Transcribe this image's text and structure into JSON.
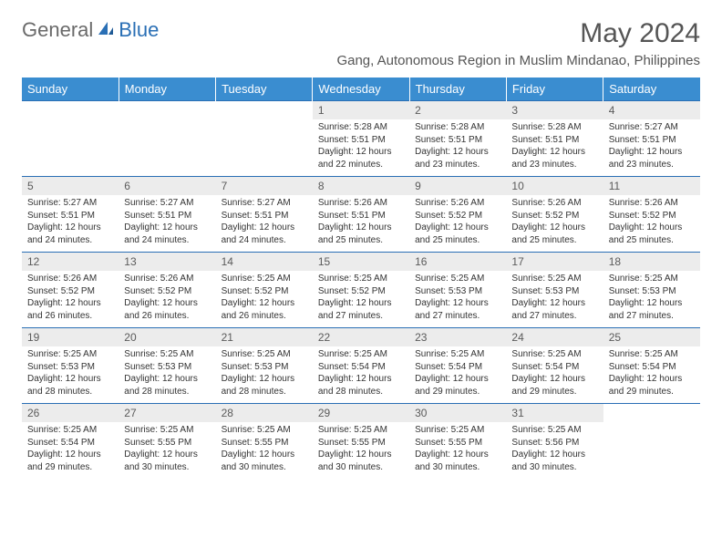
{
  "logo": {
    "part1": "General",
    "part2": "Blue"
  },
  "title": "May 2024",
  "location": "Gang, Autonomous Region in Muslim Mindanao, Philippines",
  "weekdays": [
    "Sunday",
    "Monday",
    "Tuesday",
    "Wednesday",
    "Thursday",
    "Friday",
    "Saturday"
  ],
  "colors": {
    "header_bg": "#3a8dd0",
    "header_border": "#2a6fb5",
    "daynum_bg": "#ececec",
    "text": "#333333",
    "logo_gray": "#6a6a6a",
    "logo_blue": "#2a6fb5"
  },
  "weeks": [
    [
      null,
      null,
      null,
      {
        "n": "1",
        "sr": "Sunrise: 5:28 AM",
        "ss": "Sunset: 5:51 PM",
        "dl": "Daylight: 12 hours and 22 minutes."
      },
      {
        "n": "2",
        "sr": "Sunrise: 5:28 AM",
        "ss": "Sunset: 5:51 PM",
        "dl": "Daylight: 12 hours and 23 minutes."
      },
      {
        "n": "3",
        "sr": "Sunrise: 5:28 AM",
        "ss": "Sunset: 5:51 PM",
        "dl": "Daylight: 12 hours and 23 minutes."
      },
      {
        "n": "4",
        "sr": "Sunrise: 5:27 AM",
        "ss": "Sunset: 5:51 PM",
        "dl": "Daylight: 12 hours and 23 minutes."
      }
    ],
    [
      {
        "n": "5",
        "sr": "Sunrise: 5:27 AM",
        "ss": "Sunset: 5:51 PM",
        "dl": "Daylight: 12 hours and 24 minutes."
      },
      {
        "n": "6",
        "sr": "Sunrise: 5:27 AM",
        "ss": "Sunset: 5:51 PM",
        "dl": "Daylight: 12 hours and 24 minutes."
      },
      {
        "n": "7",
        "sr": "Sunrise: 5:27 AM",
        "ss": "Sunset: 5:51 PM",
        "dl": "Daylight: 12 hours and 24 minutes."
      },
      {
        "n": "8",
        "sr": "Sunrise: 5:26 AM",
        "ss": "Sunset: 5:51 PM",
        "dl": "Daylight: 12 hours and 25 minutes."
      },
      {
        "n": "9",
        "sr": "Sunrise: 5:26 AM",
        "ss": "Sunset: 5:52 PM",
        "dl": "Daylight: 12 hours and 25 minutes."
      },
      {
        "n": "10",
        "sr": "Sunrise: 5:26 AM",
        "ss": "Sunset: 5:52 PM",
        "dl": "Daylight: 12 hours and 25 minutes."
      },
      {
        "n": "11",
        "sr": "Sunrise: 5:26 AM",
        "ss": "Sunset: 5:52 PM",
        "dl": "Daylight: 12 hours and 25 minutes."
      }
    ],
    [
      {
        "n": "12",
        "sr": "Sunrise: 5:26 AM",
        "ss": "Sunset: 5:52 PM",
        "dl": "Daylight: 12 hours and 26 minutes."
      },
      {
        "n": "13",
        "sr": "Sunrise: 5:26 AM",
        "ss": "Sunset: 5:52 PM",
        "dl": "Daylight: 12 hours and 26 minutes."
      },
      {
        "n": "14",
        "sr": "Sunrise: 5:25 AM",
        "ss": "Sunset: 5:52 PM",
        "dl": "Daylight: 12 hours and 26 minutes."
      },
      {
        "n": "15",
        "sr": "Sunrise: 5:25 AM",
        "ss": "Sunset: 5:52 PM",
        "dl": "Daylight: 12 hours and 27 minutes."
      },
      {
        "n": "16",
        "sr": "Sunrise: 5:25 AM",
        "ss": "Sunset: 5:53 PM",
        "dl": "Daylight: 12 hours and 27 minutes."
      },
      {
        "n": "17",
        "sr": "Sunrise: 5:25 AM",
        "ss": "Sunset: 5:53 PM",
        "dl": "Daylight: 12 hours and 27 minutes."
      },
      {
        "n": "18",
        "sr": "Sunrise: 5:25 AM",
        "ss": "Sunset: 5:53 PM",
        "dl": "Daylight: 12 hours and 27 minutes."
      }
    ],
    [
      {
        "n": "19",
        "sr": "Sunrise: 5:25 AM",
        "ss": "Sunset: 5:53 PM",
        "dl": "Daylight: 12 hours and 28 minutes."
      },
      {
        "n": "20",
        "sr": "Sunrise: 5:25 AM",
        "ss": "Sunset: 5:53 PM",
        "dl": "Daylight: 12 hours and 28 minutes."
      },
      {
        "n": "21",
        "sr": "Sunrise: 5:25 AM",
        "ss": "Sunset: 5:53 PM",
        "dl": "Daylight: 12 hours and 28 minutes."
      },
      {
        "n": "22",
        "sr": "Sunrise: 5:25 AM",
        "ss": "Sunset: 5:54 PM",
        "dl": "Daylight: 12 hours and 28 minutes."
      },
      {
        "n": "23",
        "sr": "Sunrise: 5:25 AM",
        "ss": "Sunset: 5:54 PM",
        "dl": "Daylight: 12 hours and 29 minutes."
      },
      {
        "n": "24",
        "sr": "Sunrise: 5:25 AM",
        "ss": "Sunset: 5:54 PM",
        "dl": "Daylight: 12 hours and 29 minutes."
      },
      {
        "n": "25",
        "sr": "Sunrise: 5:25 AM",
        "ss": "Sunset: 5:54 PM",
        "dl": "Daylight: 12 hours and 29 minutes."
      }
    ],
    [
      {
        "n": "26",
        "sr": "Sunrise: 5:25 AM",
        "ss": "Sunset: 5:54 PM",
        "dl": "Daylight: 12 hours and 29 minutes."
      },
      {
        "n": "27",
        "sr": "Sunrise: 5:25 AM",
        "ss": "Sunset: 5:55 PM",
        "dl": "Daylight: 12 hours and 30 minutes."
      },
      {
        "n": "28",
        "sr": "Sunrise: 5:25 AM",
        "ss": "Sunset: 5:55 PM",
        "dl": "Daylight: 12 hours and 30 minutes."
      },
      {
        "n": "29",
        "sr": "Sunrise: 5:25 AM",
        "ss": "Sunset: 5:55 PM",
        "dl": "Daylight: 12 hours and 30 minutes."
      },
      {
        "n": "30",
        "sr": "Sunrise: 5:25 AM",
        "ss": "Sunset: 5:55 PM",
        "dl": "Daylight: 12 hours and 30 minutes."
      },
      {
        "n": "31",
        "sr": "Sunrise: 5:25 AM",
        "ss": "Sunset: 5:56 PM",
        "dl": "Daylight: 12 hours and 30 minutes."
      },
      null
    ]
  ]
}
